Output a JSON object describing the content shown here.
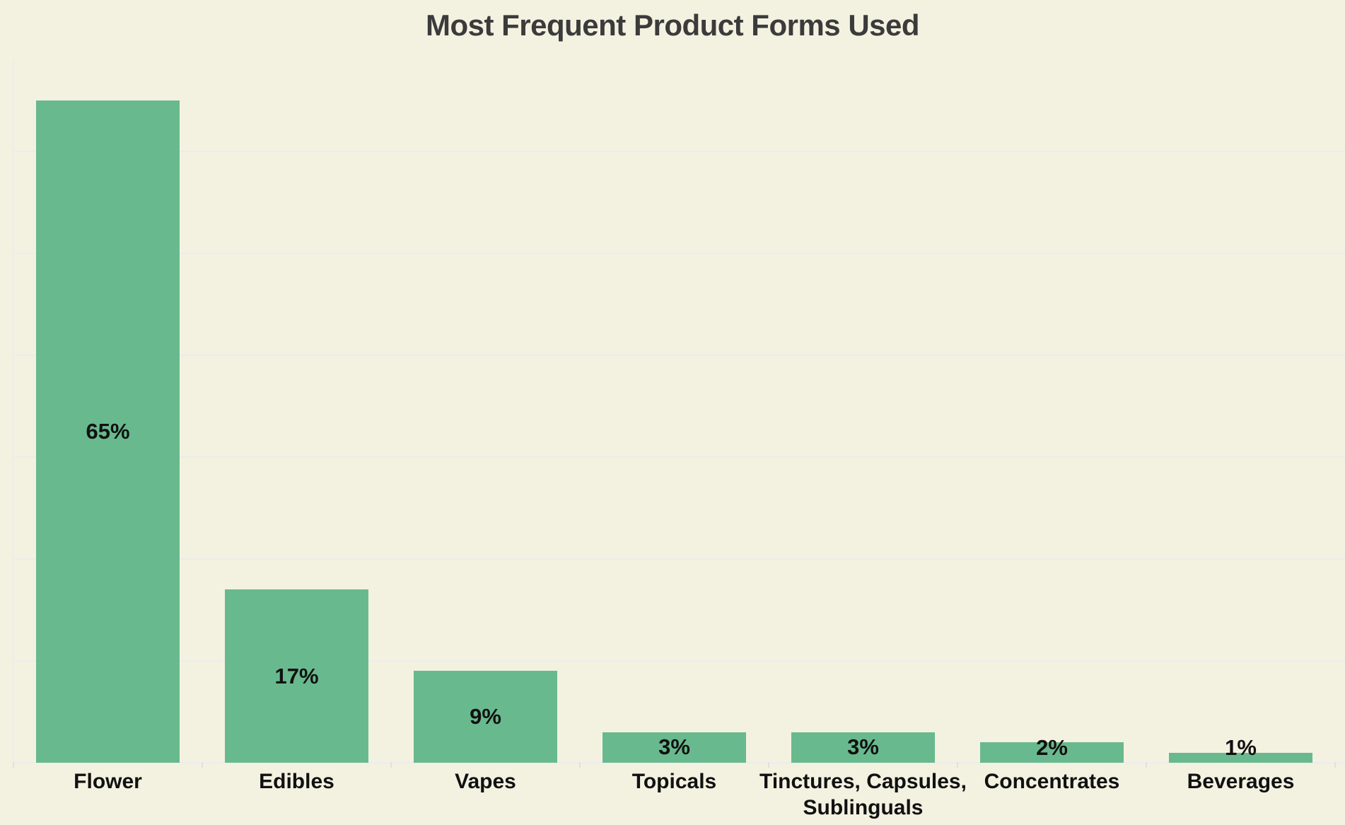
{
  "title": "Most Frequent Product Forms Used",
  "colors": {
    "background": "#f3f2e1",
    "bar": "#69b98e",
    "gridline": "#ececec",
    "axis_line": "#ececec",
    "tick": "#e0e0e0",
    "title_text": "#3b3b3b",
    "label_text": "#111111"
  },
  "chart_data": {
    "type": "bar",
    "title": "Most Frequent Product Forms Used",
    "orientation": "vertical",
    "categories": [
      "Flower",
      "Edibles",
      "Vapes",
      "Topicals",
      "Tinctures, Capsules, Sublinguals",
      "Concentrates",
      "Beverages"
    ],
    "category_label_lines": [
      [
        "Flower"
      ],
      [
        "Edibles"
      ],
      [
        "Vapes"
      ],
      [
        "Topicals"
      ],
      [
        "Tinctures, Capsules,",
        "Sublinguals"
      ],
      [
        "Concentrates"
      ],
      [
        "Beverages"
      ]
    ],
    "values": [
      65,
      17,
      9,
      3,
      3,
      2,
      1
    ],
    "value_labels": [
      "65%",
      "17%",
      "9%",
      "3%",
      "3%",
      "2%",
      "1%"
    ],
    "unit": "percent",
    "xlabel": "",
    "ylabel": "",
    "ylim": [
      0,
      70
    ],
    "gridline_interval": 10,
    "grid": "horizontal-only",
    "y_axis_tick_labels": "none",
    "legend": "none",
    "bar_color": "#69b98e"
  }
}
